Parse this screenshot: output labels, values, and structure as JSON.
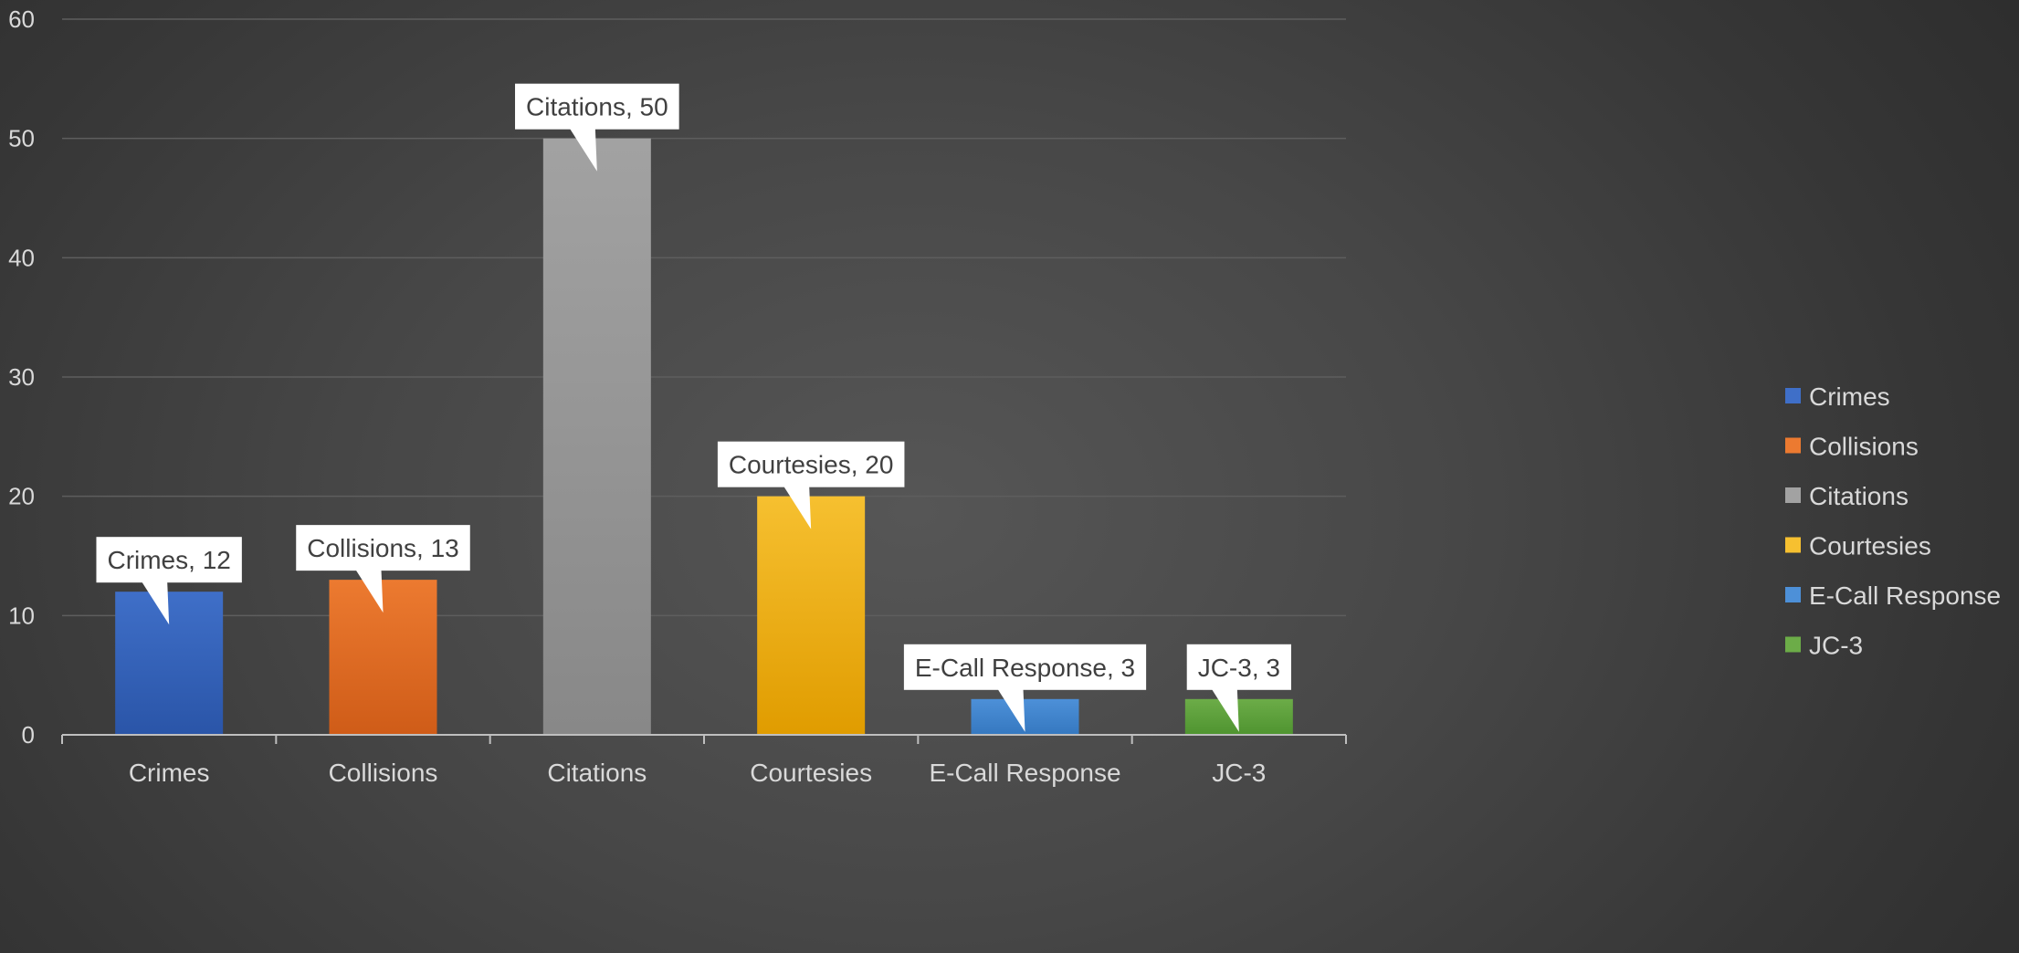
{
  "chart_data": {
    "type": "bar",
    "title": "",
    "xlabel": "",
    "ylabel": "",
    "categories": [
      "Crimes",
      "Collisions",
      "Citations",
      "Courtesies",
      "E-Call Response",
      "JC-3"
    ],
    "values": [
      12,
      13,
      50,
      20,
      3,
      3
    ],
    "data_labels": [
      "Crimes, 12",
      "Collisions, 13",
      "Citations, 50",
      "Courtesies, 20",
      "E-Call Response, 3",
      "JC-3, 3"
    ],
    "colors": [
      "#3f6fc8",
      "#ec7a30",
      "#a2a2a2",
      "#f6c030",
      "#4d90d8",
      "#6cac48"
    ],
    "colors_dark": [
      "#2a55a8",
      "#cf5c18",
      "#888888",
      "#e09c00",
      "#3578c0",
      "#4f9430"
    ],
    "ylim": [
      0,
      60
    ],
    "yticks": [
      0,
      10,
      20,
      30,
      40,
      50,
      60
    ],
    "grid": true,
    "legend": {
      "position": "right",
      "entries": [
        "Crimes",
        "Collisions",
        "Citations",
        "Courtesies",
        "E-Call Response",
        "JC-3"
      ]
    }
  }
}
